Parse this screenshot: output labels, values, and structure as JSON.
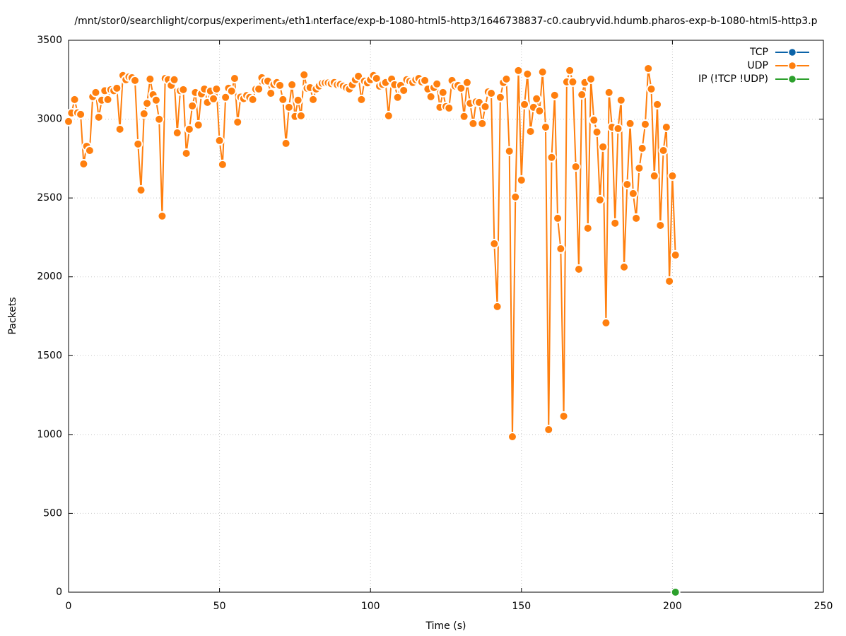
{
  "chart_data": {
    "type": "line",
    "title": "/mnt/stor0/searchlight/corpus/experiment₃/eth1ᵢnterface/exp-b-1080-html5-http3/1646738837-c0.caubryvid.hdumb.pharos-exp-b-1080-html5-http3.p",
    "x_label": "Time (s)",
    "y_label": "Packets",
    "xlim": [
      0,
      250
    ],
    "xticks": [
      0,
      50,
      100,
      150,
      200,
      250
    ],
    "ylim": [
      0,
      3500
    ],
    "yticks": [
      0,
      500,
      1000,
      1500,
      2000,
      2500,
      3000,
      3500
    ],
    "grid": true,
    "legend": "top-right",
    "series": [
      {
        "name": "TCP",
        "color": "#0b63a8",
        "x": [],
        "values": []
      },
      {
        "name": "UDP",
        "color": "#ff7f0e",
        "x": [
          0,
          1,
          2,
          3,
          4,
          5,
          6,
          7,
          8,
          9,
          10,
          11,
          12,
          13,
          14,
          15,
          16,
          17,
          18,
          19,
          20,
          21,
          22,
          23,
          24,
          25,
          26,
          27,
          28,
          29,
          30,
          31,
          32,
          33,
          34,
          35,
          36,
          37,
          38,
          39,
          40,
          41,
          42,
          43,
          44,
          45,
          46,
          47,
          48,
          49,
          50,
          51,
          52,
          53,
          54,
          55,
          56,
          57,
          58,
          59,
          60,
          61,
          62,
          63,
          64,
          65,
          66,
          67,
          68,
          69,
          70,
          71,
          72,
          73,
          74,
          75,
          76,
          77,
          78,
          79,
          80,
          81,
          82,
          83,
          84,
          85,
          86,
          87,
          88,
          89,
          90,
          91,
          92,
          93,
          94,
          95,
          96,
          97,
          98,
          99,
          100,
          101,
          102,
          103,
          104,
          105,
          106,
          107,
          108,
          109,
          110,
          111,
          112,
          113,
          114,
          115,
          116,
          117,
          118,
          119,
          120,
          121,
          122,
          123,
          124,
          125,
          126,
          127,
          128,
          129,
          130,
          131,
          132,
          133,
          134,
          135,
          136,
          137,
          138,
          139,
          140,
          141,
          142,
          143,
          144,
          145,
          146,
          147,
          148,
          149,
          150,
          151,
          152,
          153,
          154,
          155,
          156,
          157,
          158,
          159,
          160,
          161,
          162,
          163,
          164,
          165,
          166,
          167,
          168,
          169,
          170,
          171,
          172,
          173,
          174,
          175,
          176,
          177,
          178,
          179,
          180,
          181,
          182,
          183,
          184,
          185,
          186,
          187,
          188,
          189,
          190,
          191,
          192,
          193,
          194,
          195,
          196,
          197,
          198,
          199,
          200,
          201
        ],
        "values": [
          2985,
          3039,
          3124,
          3040,
          3030,
          2716,
          2828,
          2801,
          3142,
          3169,
          3012,
          3120,
          3180,
          3124,
          3187,
          3180,
          3196,
          2936,
          3277,
          3250,
          3268,
          3263,
          3245,
          2842,
          2550,
          3034,
          3100,
          3254,
          3155,
          3120,
          2999,
          2385,
          3258,
          3250,
          3214,
          3250,
          2913,
          3180,
          3187,
          2783,
          2936,
          3084,
          3169,
          2963,
          3160,
          3191,
          3106,
          3178,
          3129,
          3191,
          2864,
          2712,
          3138,
          3196,
          3178,
          3258,
          2981,
          3140,
          3130,
          3150,
          3138,
          3124,
          3190,
          3191,
          3263,
          3240,
          3241,
          3164,
          3220,
          3232,
          3214,
          3124,
          2846,
          3075,
          3218,
          3017,
          3120,
          3021,
          3281,
          3196,
          3200,
          3124,
          3191,
          3210,
          3227,
          3230,
          3230,
          3225,
          3232,
          3218,
          3220,
          3210,
          3200,
          3191,
          3218,
          3250,
          3272,
          3124,
          3241,
          3230,
          3250,
          3277,
          3258,
          3209,
          3220,
          3232,
          3021,
          3254,
          3218,
          3138,
          3214,
          3182,
          3250,
          3240,
          3232,
          3250,
          3258,
          3236,
          3245,
          3191,
          3142,
          3200,
          3223,
          3075,
          3169,
          3080,
          3070,
          3245,
          3210,
          3214,
          3196,
          3017,
          3232,
          3100,
          2972,
          3110,
          3106,
          2972,
          3079,
          3173,
          3164,
          2210,
          1811,
          3138,
          3232,
          3254,
          2797,
          986,
          2506,
          3308,
          2613,
          3093,
          3286,
          2922,
          3075,
          3129,
          3052,
          3299,
          2949,
          1031,
          2757,
          3151,
          2371,
          2178,
          1116,
          3236,
          3308,
          3236,
          2698,
          2048,
          3155,
          3232,
          2308,
          3254,
          2994,
          2918,
          2488,
          2824,
          1708,
          3169,
          2949,
          2340,
          2940,
          3120,
          2062,
          2586,
          2972,
          2528,
          2371,
          2689,
          2815,
          2967,
          3321,
          3191,
          2640,
          3093,
          2326,
          2801,
          2949,
          1972,
          2640,
          2138
        ]
      },
      {
        "name": "IP (!TCP  !UDP)",
        "color": "#2ca02c",
        "x": [
          201
        ],
        "values": [
          0
        ]
      }
    ]
  }
}
